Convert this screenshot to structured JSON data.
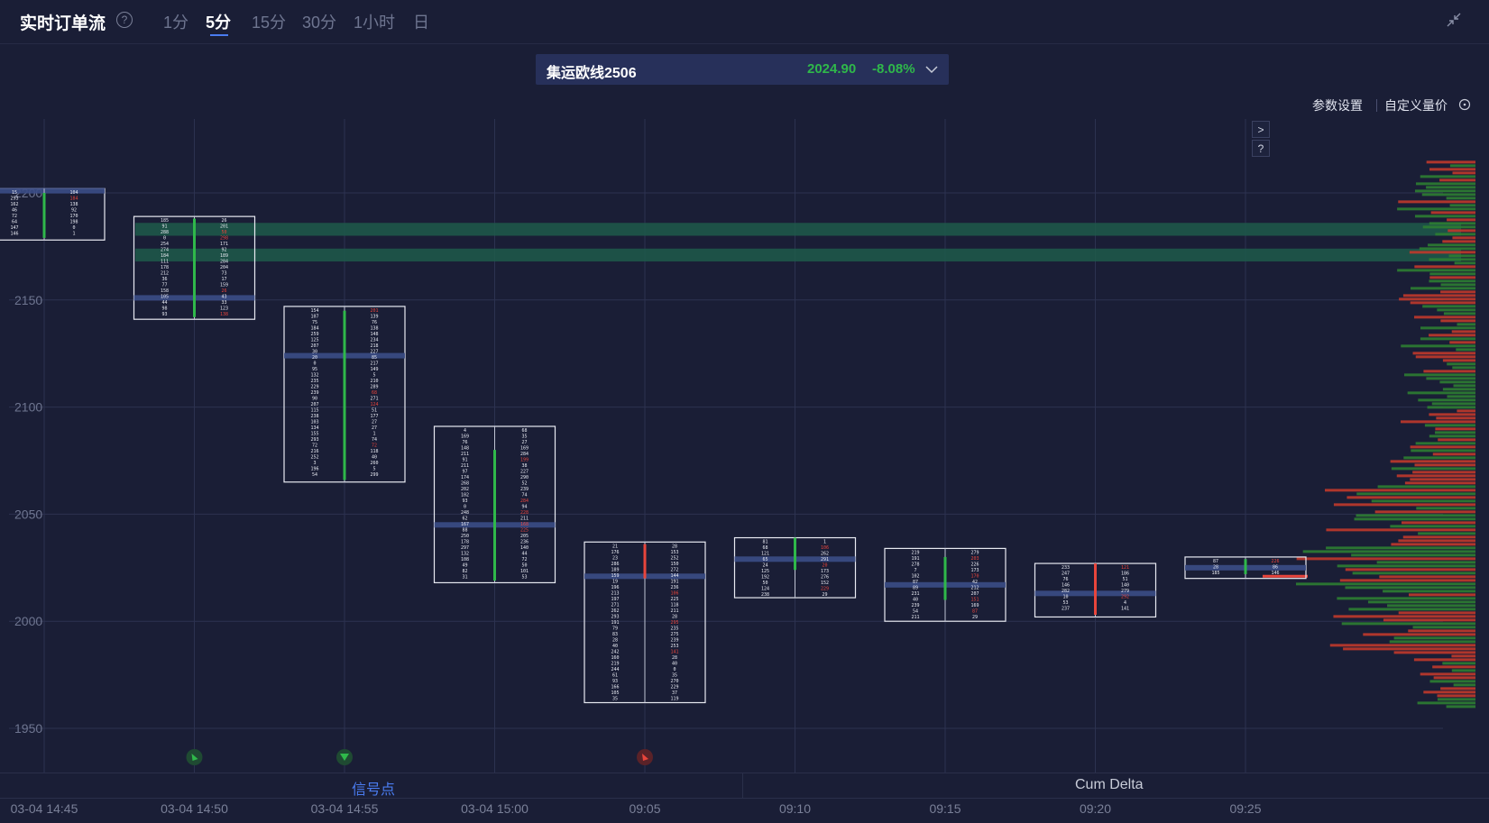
{
  "header": {
    "title": "实时订单流",
    "tabs": [
      {
        "label": "1分",
        "active": false
      },
      {
        "label": "5分",
        "active": true
      },
      {
        "label": "15分",
        "active": false
      },
      {
        "label": "30分",
        "active": false
      },
      {
        "label": "1小时",
        "active": false
      },
      {
        "label": "日",
        "active": false
      }
    ]
  },
  "symbol": {
    "name": "集运欧线2506",
    "price": "2024.90",
    "change": "-8.08%",
    "change_color": "#2fb84a"
  },
  "toolbar": {
    "param_settings": "参数设置",
    "custom_volume_price": "自定义量价"
  },
  "side_buttons": {
    "expand": ">",
    "help": "?"
  },
  "footer": {
    "signal_tab": "信号点",
    "cum_delta_tab": "Cum Delta"
  },
  "chart_data": {
    "type": "footprint",
    "ylim": [
      1930,
      2240
    ],
    "y_ticks": [
      2200,
      2150,
      2100,
      2050,
      2000,
      1950
    ],
    "x_labels": [
      "03-04 14:45",
      "03-04 14:50",
      "03-04 14:55",
      "03-04 15:00",
      "09:05",
      "09:10",
      "09:15",
      "09:20",
      "09:25"
    ],
    "grid": true,
    "colors": {
      "up": "#2fb84a",
      "down": "#e8453c",
      "poc": "#3b4d86",
      "box": "#e8eaf2",
      "highlight": "#1e5a4a"
    },
    "candles": [
      {
        "time": "03-04 14:45",
        "open": 2179,
        "close": 2200,
        "high": 2202,
        "low": 2178,
        "poc": 2201,
        "dir": "up"
      },
      {
        "time": "03-04 14:50",
        "open": 2142,
        "close": 2188,
        "high": 2189,
        "low": 2141,
        "poc": 2151,
        "dir": "up"
      },
      {
        "time": "03-04 14:55",
        "open": 2066,
        "close": 2145,
        "high": 2147,
        "low": 2065,
        "poc": 2124,
        "dir": "up"
      },
      {
        "time": "03-04 15:00",
        "open": 2019,
        "close": 2080,
        "high": 2091,
        "low": 2018,
        "poc": 2045,
        "dir": "up"
      },
      {
        "time": "09:05",
        "open": 2036,
        "close": 2020,
        "high": 2037,
        "low": 1962,
        "poc": 2021,
        "dir": "down"
      },
      {
        "time": "09:10",
        "open": 2024,
        "close": 2039,
        "high": 2039,
        "low": 2011,
        "poc": 2029,
        "dir": "up"
      },
      {
        "time": "09:15",
        "open": 2010,
        "close": 2030,
        "high": 2034,
        "low": 2000,
        "poc": 2017,
        "dir": "up"
      },
      {
        "time": "09:20",
        "open": 2027,
        "close": 2003,
        "high": 2027,
        "low": 2002,
        "poc": 2013,
        "dir": "down"
      },
      {
        "time": "09:25",
        "open": 2022,
        "close": 2029,
        "high": 2030,
        "low": 2020,
        "poc": 2025,
        "dir": "up"
      }
    ],
    "highlight_levels": [
      [
        2180,
        2186
      ],
      [
        2168,
        2174
      ]
    ],
    "signals": [
      {
        "time": "03-04 14:50",
        "kind": "buy"
      },
      {
        "time": "03-04 14:55",
        "kind": "buy-down"
      },
      {
        "time": "09:05",
        "kind": "sell"
      }
    ],
    "last_price": 2021
  }
}
